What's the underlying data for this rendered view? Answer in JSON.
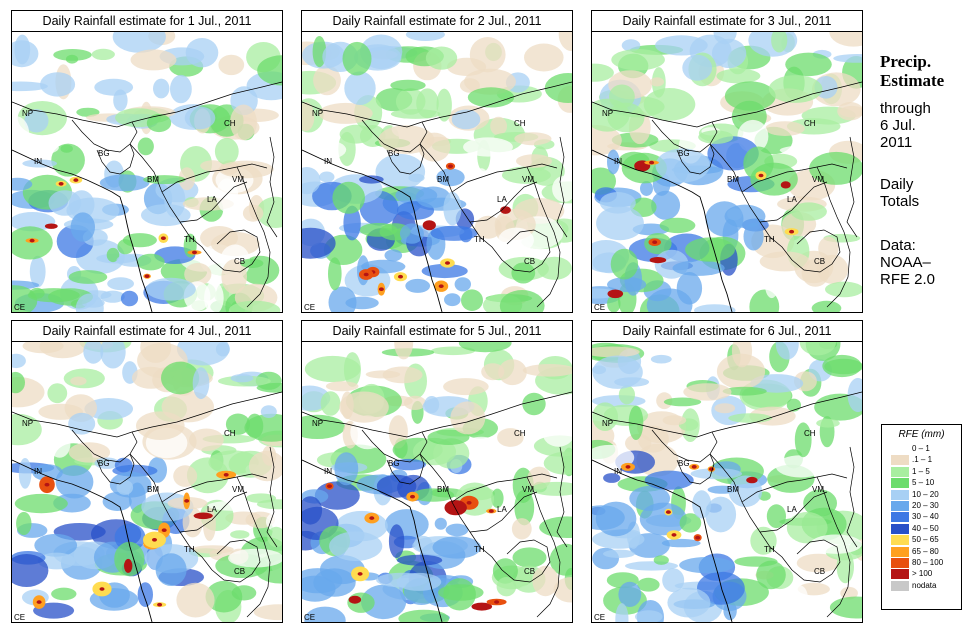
{
  "panels": [
    {
      "title": "Daily Rainfall estimate for  1 Jul., 2011",
      "seed": 11,
      "heavy": 0.35
    },
    {
      "title": "Daily Rainfall estimate for  2 Jul., 2011",
      "seed": 23,
      "heavy": 0.55
    },
    {
      "title": "Daily Rainfall estimate for  3 Jul., 2011",
      "seed": 37,
      "heavy": 0.45
    },
    {
      "title": "Daily Rainfall estimate for  4 Jul., 2011",
      "seed": 41,
      "heavy": 0.8
    },
    {
      "title": "Daily Rainfall estimate for  5 Jul., 2011",
      "seed": 53,
      "heavy": 0.7
    },
    {
      "title": "Daily Rainfall estimate for  6 Jul., 2011",
      "seed": 67,
      "heavy": 0.4
    }
  ],
  "map_labels": {
    "np": "NP",
    "ch": "CH",
    "in": "IN",
    "bg": "BG",
    "bm": "BM",
    "vm": "VM",
    "la": "LA",
    "th": "TH",
    "cb": "CB",
    "ce": "CE"
  },
  "sidebar": {
    "title_line1": "Precip.",
    "title_line2": "Estimate",
    "through_label": "through",
    "end_date_line1": "6 Jul.",
    "end_date_line2": "2011",
    "totals_line1": "Daily",
    "totals_line2": "Totals",
    "data_line1": "Data:",
    "data_line2": "NOAA–",
    "data_line3": "RFE 2.0"
  },
  "legend": {
    "title": "RFE (mm)",
    "items": [
      {
        "label": "0 – 1",
        "color": "#ffffff"
      },
      {
        "label": ".1 – 1",
        "color": "#eedcc4"
      },
      {
        "label": "1 – 5",
        "color": "#a8eea0"
      },
      {
        "label": "5 – 10",
        "color": "#6cdc6c"
      },
      {
        "label": "10 – 20",
        "color": "#a8d0f4"
      },
      {
        "label": "20 – 30",
        "color": "#68a8ec"
      },
      {
        "label": "30 – 40",
        "color": "#3c78e4"
      },
      {
        "label": "40 – 50",
        "color": "#2850c8"
      },
      {
        "label": "50 – 65",
        "color": "#ffdc50"
      },
      {
        "label": "65 – 80",
        "color": "#ffa020"
      },
      {
        "label": "80 – 100",
        "color": "#e85010"
      },
      {
        "label": "> 100",
        "color": "#b41414"
      },
      {
        "label": "nodata",
        "color": "#c8c8c8"
      }
    ]
  }
}
